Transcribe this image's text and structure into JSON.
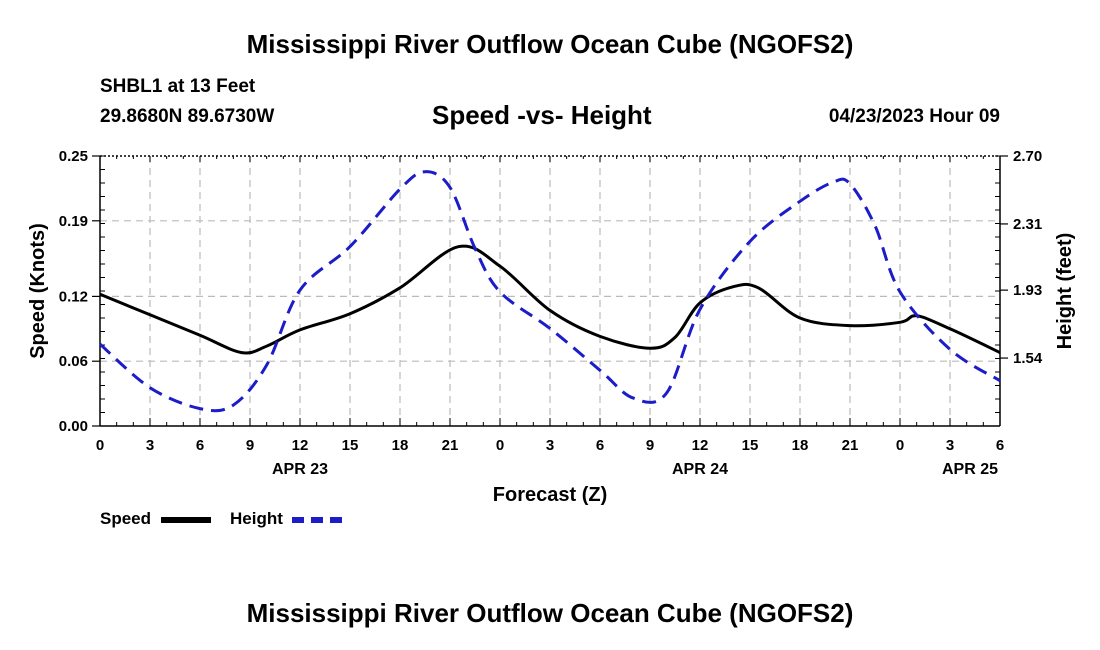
{
  "page": {
    "main_title": "Mississippi River Outflow Ocean Cube (NGOFS2)",
    "footer_title": "Mississippi River Outflow Ocean Cube (NGOFS2)",
    "station": "SHBL1 at 13 Feet",
    "coords": "29.8680N  89.6730W",
    "subtitle": "Speed -vs- Height",
    "datetime": "04/23/2023 Hour 09"
  },
  "chart_data": {
    "type": "line",
    "title": "Speed -vs- Height",
    "xlabel": "Forecast (Z)",
    "ylabel": "Speed (Knots)",
    "y2label": "Height (feet)",
    "x_range": [
      0,
      54
    ],
    "ylim": [
      0,
      0.25
    ],
    "y2lim": [
      1.15,
      2.7
    ],
    "yticks": [
      0,
      0.06,
      0.12,
      0.19,
      0.25
    ],
    "yticklabels": [
      "0.00",
      "0.06",
      "0.12",
      "0.19",
      "0.25"
    ],
    "y2ticks": [
      1.54,
      1.93,
      2.31,
      2.7
    ],
    "y2ticklabels": [
      "1.54",
      "1.93",
      "2.31",
      "2.70"
    ],
    "xticks": [
      0,
      3,
      6,
      9,
      12,
      15,
      18,
      21,
      24,
      27,
      30,
      33,
      36,
      39,
      42,
      45,
      48,
      51,
      54
    ],
    "xticklabels": [
      "0",
      "3",
      "6",
      "9",
      "12",
      "15",
      "18",
      "21",
      "0",
      "3",
      "6",
      "9",
      "12",
      "15",
      "18",
      "21",
      "0",
      "3",
      "6"
    ],
    "date_labels": [
      {
        "x": 12,
        "label": "APR 23"
      },
      {
        "x": 36,
        "label": "APR 24"
      },
      {
        "x": 60,
        "label": "APR 25"
      }
    ],
    "grid": true,
    "legend_position": "bottom-left",
    "series": [
      {
        "name": "Speed",
        "axis": "left",
        "color": "#000000",
        "style": "solid",
        "x": [
          0,
          3,
          6,
          8.5,
          10,
          12,
          15,
          18,
          21.5,
          24,
          27,
          30,
          33,
          34.5,
          36,
          38,
          39.5,
          42,
          45,
          48,
          49,
          51,
          54
        ],
        "values": [
          0.122,
          0.103,
          0.084,
          0.068,
          0.074,
          0.089,
          0.104,
          0.128,
          0.166,
          0.148,
          0.107,
          0.083,
          0.072,
          0.082,
          0.114,
          0.129,
          0.128,
          0.1,
          0.093,
          0.096,
          0.102,
          0.09,
          0.068
        ]
      },
      {
        "name": "Height",
        "axis": "right",
        "color": "#1c1cc8",
        "style": "dashed",
        "x": [
          0,
          3,
          6,
          8,
          10,
          12,
          15,
          18,
          19.5,
          21,
          22.5,
          24,
          27,
          30,
          32,
          34,
          36,
          39,
          42,
          44,
          45,
          46.5,
          48,
          51,
          54
        ],
        "values": [
          1.62,
          1.37,
          1.25,
          1.27,
          1.5,
          1.93,
          2.18,
          2.51,
          2.61,
          2.52,
          2.17,
          1.92,
          1.71,
          1.47,
          1.31,
          1.34,
          1.82,
          2.21,
          2.44,
          2.55,
          2.54,
          2.3,
          1.92,
          1.59,
          1.41
        ]
      }
    ]
  }
}
